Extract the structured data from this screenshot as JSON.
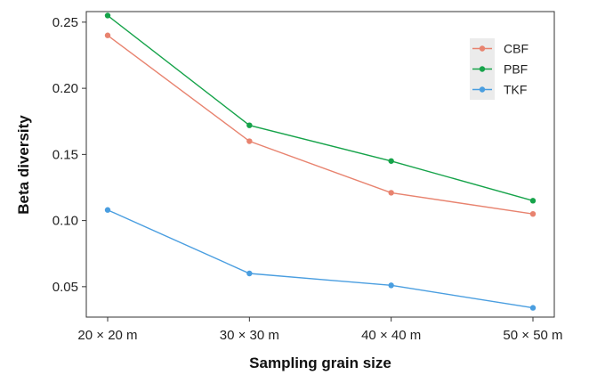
{
  "chart_data": {
    "type": "line",
    "title": "",
    "xlabel": "Sampling grain size",
    "ylabel": "Beta diversity",
    "categories": [
      "20 × 20 m",
      "30 × 30 m",
      "40 × 40 m",
      "50 × 50 m"
    ],
    "ylim": [
      0.027,
      0.258
    ],
    "yticks": [
      0.05,
      0.1,
      0.15,
      0.2,
      0.25
    ],
    "ytick_labels": [
      "0.05",
      "0.10",
      "0.15",
      "0.20",
      "0.25"
    ],
    "grid": false,
    "legend_position": "top-right",
    "series": [
      {
        "name": "CBF",
        "color": "#e8836f",
        "values": [
          0.24,
          0.16,
          0.121,
          0.105
        ]
      },
      {
        "name": "PBF",
        "color": "#16a34a",
        "values": [
          0.255,
          0.172,
          0.145,
          0.115
        ]
      },
      {
        "name": "TKF",
        "color": "#4a9ee0",
        "values": [
          0.108,
          0.06,
          0.051,
          0.034
        ]
      }
    ]
  }
}
